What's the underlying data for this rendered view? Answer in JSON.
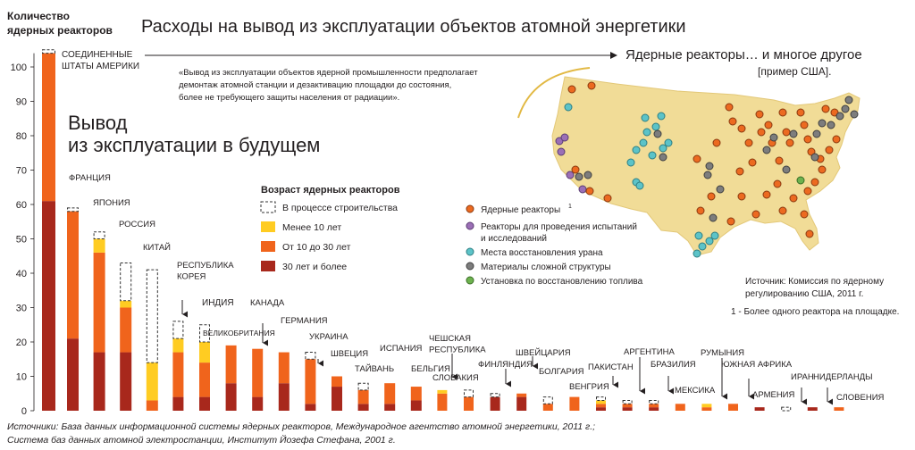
{
  "colors": {
    "old": "#a8281c",
    "mid": "#f0641c",
    "young": "#ffcc22",
    "construction": "#333333",
    "map_land": "#f1dc97",
    "pin_reactor": "#ec6a20",
    "pin_research": "#9b6fb6",
    "pin_uranium": "#5cc3c8",
    "pin_complex": "#7d7d7d",
    "pin_fuel": "#6db24e"
  },
  "header": {
    "title": "Расходы на вывод из эксплуатации объектов атомной энергетики",
    "ylabel_line1": "Количество",
    "ylabel_line2": "ядерных реакторов",
    "future_line1": "Вывод",
    "future_line2": "из эксплуатации в будущем"
  },
  "quote": {
    "line1": "«Вывод из эксплуатации объектов ядерной промышленности предполагает",
    "line2": "демонтаж атомной станции и дезактивацию площадки до состояния,",
    "line3": "более не требующего защиты населения от радиации»."
  },
  "map_panel": {
    "title": "Ядерные реакторы… и многое другое",
    "subtitle": "[пример США].",
    "legend": {
      "reactors": "Ядерные реакторы",
      "reactors_sup": "1",
      "research_line1": "Реакторы для проведения испытаний",
      "research_line2": "и исследований",
      "uranium": "Места восстановления урана",
      "complex": "Материалы сложной структуры",
      "fuel": "Установка по восстановлению топлива"
    },
    "source_line1": "Источник: Комиссия по ядерному",
    "source_line2": "регулированию США, 2011 г.",
    "footnote": "1 - Более одного реактора на площадке."
  },
  "age_legend": {
    "title": "Возраст ядерных реакторов",
    "construction": "В процессе строительства",
    "young": "Менее 10 лет",
    "mid": "От 10 до 30 лет",
    "old": "30 лет и более"
  },
  "footer": {
    "line1": "Источники: База данных информационной системы ядерных реакторов, Международное агентство атомной энергетики, 2011 г.;",
    "line2": "Система баз данных атомной электростанции, Институт Йозефа Стефана, 2001 г."
  },
  "chart_data": {
    "type": "bar",
    "title": "Расходы на вывод из эксплуатации объектов атомной энергетики",
    "xlabel": "",
    "ylabel": "Количество ядерных реакторов",
    "ylim": [
      0,
      106
    ],
    "yticks": [
      0,
      10,
      20,
      30,
      40,
      50,
      60,
      70,
      80,
      90,
      100
    ],
    "grid": false,
    "stacked": true,
    "series_names": [
      "30 лет и более",
      "От 10 до 30 лет",
      "Менее 10 лет",
      "В процессе строительства"
    ],
    "categories": [
      {
        "name": "СОЕДИНЕННЫЕ ШТАТЫ АМЕРИКИ",
        "lines": [
          "СОЕДИНЕННЫЕ",
          "ШТАТЫ АМЕРИКИ"
        ],
        "old": 61,
        "mid": 43,
        "young": 0,
        "construction": 1
      },
      {
        "name": "ФРАНЦИЯ",
        "lines": [
          "ФРАНЦИЯ"
        ],
        "old": 21,
        "mid": 37,
        "young": 0,
        "construction": 1
      },
      {
        "name": "ЯПОНИЯ",
        "lines": [
          "ЯПОНИЯ"
        ],
        "old": 17,
        "mid": 29,
        "young": 4,
        "construction": 2
      },
      {
        "name": "РОССИЯ",
        "lines": [
          "РОССИЯ"
        ],
        "old": 17,
        "mid": 13,
        "young": 2,
        "construction": 11
      },
      {
        "name": "КИТАЙ",
        "lines": [
          "КИТАЙ"
        ],
        "old": 0,
        "mid": 3,
        "young": 11,
        "construction": 27
      },
      {
        "name": "РЕСПУБЛИКА КОРЕЯ",
        "lines": [
          "РЕСПУБЛИКА",
          "КОРЕЯ"
        ],
        "old": 4,
        "mid": 13,
        "young": 4,
        "construction": 5
      },
      {
        "name": "ИНДИЯ",
        "lines": [
          "ИНДИЯ"
        ],
        "old": 4,
        "mid": 10,
        "young": 6,
        "construction": 5
      },
      {
        "name": "ВЕЛИКОБРИТАНИЯ",
        "lines": [
          "ВЕЛИКОБРИТАНИЯ"
        ],
        "old": 8,
        "mid": 11,
        "young": 0,
        "construction": 0
      },
      {
        "name": "КАНАДА",
        "lines": [
          "КАНАДА"
        ],
        "old": 4,
        "mid": 14,
        "young": 0,
        "construction": 0
      },
      {
        "name": "ГЕРМАНИЯ",
        "lines": [
          "ГЕРМАНИЯ"
        ],
        "old": 8,
        "mid": 9,
        "young": 0,
        "construction": 0
      },
      {
        "name": "УКРАИНА",
        "lines": [
          "УКРАИНА"
        ],
        "old": 2,
        "mid": 13,
        "young": 0,
        "construction": 2
      },
      {
        "name": "ШВЕЦИЯ",
        "lines": [
          "ШВЕЦИЯ"
        ],
        "old": 7,
        "mid": 3,
        "young": 0,
        "construction": 0
      },
      {
        "name": "ТАЙВАНЬ",
        "lines": [
          "ТАЙВАНЬ"
        ],
        "old": 2,
        "mid": 4,
        "young": 0,
        "construction": 2
      },
      {
        "name": "ИСПАНИЯ",
        "lines": [
          "ИСПАНИЯ"
        ],
        "old": 2,
        "mid": 6,
        "young": 0,
        "construction": 0
      },
      {
        "name": "БЕЛЬГИЯ",
        "lines": [
          "БЕЛЬГИЯ"
        ],
        "old": 3,
        "mid": 4,
        "young": 0,
        "construction": 0
      },
      {
        "name": "ЧЕШСКАЯ РЕСПУБЛИКА",
        "lines": [
          "ЧЕШСКАЯ",
          "РЕСПУБЛИКА"
        ],
        "old": 0,
        "mid": 5,
        "young": 1,
        "construction": 0
      },
      {
        "name": "СЛОВАКИЯ",
        "lines": [
          "СЛОВАКИЯ"
        ],
        "old": 0,
        "mid": 4,
        "young": 0,
        "construction": 2
      },
      {
        "name": "ФИНЛЯНДИЯ",
        "lines": [
          "ФИНЛЯНДИЯ"
        ],
        "old": 4,
        "mid": 0,
        "young": 0,
        "construction": 1
      },
      {
        "name": "ШВЕЙЦАРИЯ",
        "lines": [
          "ШВЕЙЦАРИЯ"
        ],
        "old": 4,
        "mid": 1,
        "young": 0,
        "construction": 0
      },
      {
        "name": "БОЛГАРИЯ",
        "lines": [
          "БОЛГАРИЯ"
        ],
        "old": 0,
        "mid": 2,
        "young": 0,
        "construction": 2
      },
      {
        "name": "ВЕНГРИЯ",
        "lines": [
          "ВЕНГРИЯ"
        ],
        "old": 0,
        "mid": 4,
        "young": 0,
        "construction": 0
      },
      {
        "name": "ПАКИСТАН",
        "lines": [
          "ПАКИСТАН"
        ],
        "old": 1,
        "mid": 1,
        "young": 1,
        "construction": 1
      },
      {
        "name": "АРГЕНТИНА",
        "lines": [
          "АРГЕНТИНА"
        ],
        "old": 1,
        "mid": 1,
        "young": 0,
        "construction": 1
      },
      {
        "name": "БРАЗИЛИЯ",
        "lines": [
          "БРАЗИЛИЯ"
        ],
        "old": 1,
        "mid": 1,
        "young": 0,
        "construction": 1
      },
      {
        "name": "МЕКСИКА",
        "lines": [
          "МЕКСИКА"
        ],
        "old": 0,
        "mid": 2,
        "young": 0,
        "construction": 0
      },
      {
        "name": "РУМЫНИЯ",
        "lines": [
          "РУМЫНИЯ"
        ],
        "old": 0,
        "mid": 1,
        "young": 1,
        "construction": 0
      },
      {
        "name": "ЮЖНАЯ АФРИКА",
        "lines": [
          "ЮЖНАЯ АФРИКА"
        ],
        "old": 0,
        "mid": 2,
        "young": 0,
        "construction": 0
      },
      {
        "name": "АРМЕНИЯ",
        "lines": [
          "АРМЕНИЯ"
        ],
        "old": 1,
        "mid": 0,
        "young": 0,
        "construction": 0
      },
      {
        "name": "ИРАН",
        "lines": [
          "ИРАН"
        ],
        "old": 0,
        "mid": 0,
        "young": 0,
        "construction": 1
      },
      {
        "name": "НИДЕРЛАНДЫ",
        "lines": [
          "НИДЕРЛАНДЫ"
        ],
        "old": 1,
        "mid": 0,
        "young": 0,
        "construction": 0
      },
      {
        "name": "СЛОВЕНИЯ",
        "lines": [
          "СЛОВЕНИЯ"
        ],
        "old": 0,
        "mid": 1,
        "young": 0,
        "construction": 0
      }
    ]
  }
}
